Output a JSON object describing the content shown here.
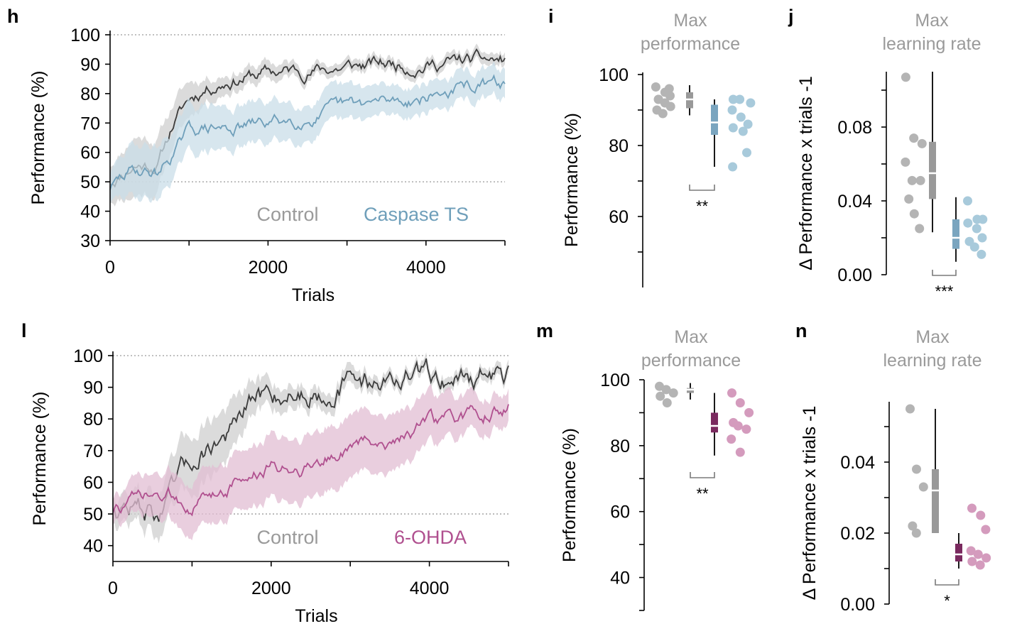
{
  "colors": {
    "control": "#3c3c3c",
    "control_band": "#cfcfcf",
    "control_point": "#b4b4b4",
    "control_box": "#999999",
    "caspase": "#6f9fba",
    "caspase_band": "#c9dde8",
    "caspase_point": "#a8cadb",
    "caspase_box": "#7aa5bf",
    "ohda": "#b0508f",
    "ohda_band": "#e2bdd3",
    "ohda_point": "#d49bbd",
    "ohda_box": "#7a2a5f",
    "title_grey": "#9a9a9a",
    "axis": "#000000"
  },
  "chart_data": [
    {
      "panel": "h",
      "type": "line",
      "xlabel": "Trials",
      "ylabel": "Performance (%)",
      "xlim": [
        0,
        5000
      ],
      "ylim": [
        30,
        100
      ],
      "xticks": [
        0,
        2000,
        4000
      ],
      "yticks": [
        30,
        40,
        50,
        60,
        70,
        80,
        90,
        100
      ],
      "reference_lines": [
        50,
        100
      ],
      "series": [
        {
          "name": "Control",
          "x": [
            0,
            300,
            600,
            800,
            1000,
            1200,
            1500,
            2000,
            2500,
            3000,
            3500,
            4000,
            4500,
            5000
          ],
          "y": [
            50,
            56,
            56,
            70,
            78,
            82,
            85,
            87,
            88,
            89,
            90,
            90,
            91,
            91
          ],
          "band": [
            6,
            10,
            9,
            7,
            6,
            4,
            3,
            3,
            2,
            2,
            2,
            2,
            2,
            2
          ]
        },
        {
          "name": "Caspase TS",
          "x": [
            0,
            300,
            600,
            800,
            1000,
            1200,
            1500,
            2000,
            2500,
            3000,
            3500,
            4000,
            4500,
            5000
          ],
          "y": [
            48,
            54,
            53,
            60,
            67,
            68,
            68,
            70,
            72,
            75,
            77,
            79,
            82,
            83
          ],
          "band": [
            5,
            9,
            9,
            8,
            8,
            8,
            7,
            7,
            6,
            6,
            5,
            5,
            5,
            5
          ]
        }
      ]
    },
    {
      "panel": "i",
      "type": "scatter",
      "title": "Max\nperformance",
      "ylabel": "Performance (%)",
      "ylim": [
        40,
        100
      ],
      "yticks": [
        60,
        80,
        100
      ],
      "groups": [
        {
          "name": "Control",
          "points": [
            96.5,
            95,
            94,
            93,
            92,
            91,
            90,
            89,
            96,
            93
          ],
          "box": {
            "min": 88.5,
            "q1": 90.5,
            "median": 93,
            "q3": 95,
            "max": 97
          }
        },
        {
          "name": "Caspase TS",
          "points": [
            93,
            93,
            92,
            90,
            88,
            86,
            85,
            84,
            78,
            74
          ],
          "box": {
            "min": 74,
            "q1": 83,
            "median": 86.5,
            "q3": 91.5,
            "max": 93
          }
        }
      ],
      "significance": "**"
    },
    {
      "panel": "j",
      "type": "scatter",
      "title": "Max\nlearning rate",
      "ylabel": "Δ Performance x trials -1",
      "ylim": [
        0,
        0.11
      ],
      "yticks": [
        0.0,
        0.04,
        0.08
      ],
      "ytick_labels": [
        "0.00",
        "0.04",
        "0.08"
      ],
      "groups": [
        {
          "name": "Control",
          "points": [
            0.107,
            0.074,
            0.071,
            0.061,
            0.051,
            0.051,
            0.041,
            0.033,
            0.025
          ],
          "box": {
            "min": 0.023,
            "q1": 0.041,
            "median": 0.055,
            "q3": 0.072,
            "max": 0.11
          }
        },
        {
          "name": "Caspase TS",
          "points": [
            0.04,
            0.03,
            0.03,
            0.028,
            0.025,
            0.02,
            0.018,
            0.015,
            0.011
          ],
          "box": {
            "min": 0.007,
            "q1": 0.014,
            "median": 0.02,
            "q3": 0.03,
            "max": 0.042
          }
        }
      ],
      "significance": "***"
    },
    {
      "panel": "l",
      "type": "line",
      "xlabel": "Trials",
      "ylabel": "Performance (%)",
      "xlim": [
        0,
        5000
      ],
      "ylim": [
        35,
        100
      ],
      "xticks": [
        0,
        2000,
        4000
      ],
      "yticks": [
        40,
        50,
        60,
        70,
        80,
        90,
        100
      ],
      "reference_lines": [
        50,
        100
      ],
      "series": [
        {
          "name": "Control",
          "x": [
            0,
            300,
            600,
            800,
            1000,
            1200,
            1500,
            1800,
            2000,
            2500,
            3000,
            3500,
            4000,
            4500,
            5000
          ],
          "y": [
            52,
            52,
            50,
            58,
            66,
            72,
            76,
            85,
            88,
            89,
            92,
            93,
            93,
            94,
            94
          ],
          "band": [
            4,
            5,
            7,
            8,
            9,
            9,
            8,
            5,
            4,
            3,
            3,
            2,
            2,
            2,
            2
          ]
        },
        {
          "name": "6-OHDA",
          "x": [
            0,
            300,
            600,
            800,
            1000,
            1200,
            1500,
            2000,
            2500,
            3000,
            3500,
            4000,
            4500,
            5000
          ],
          "y": [
            51,
            54,
            55,
            55,
            54,
            55,
            60,
            64,
            66,
            71,
            74,
            78,
            80,
            84
          ],
          "band": [
            4,
            6,
            7,
            8,
            8,
            9,
            9,
            10,
            10,
            10,
            9,
            8,
            6,
            5
          ]
        }
      ]
    },
    {
      "panel": "m",
      "type": "scatter",
      "title": "Max\nperformance",
      "ylabel": "Performance (%)",
      "ylim": [
        30,
        100
      ],
      "yticks": [
        40,
        60,
        80,
        100
      ],
      "groups": [
        {
          "name": "Control",
          "points": [
            98,
            97,
            96,
            95,
            93
          ],
          "box": {
            "min": 94,
            "q1": 96,
            "median": 97,
            "q3": 97.5,
            "max": 99
          }
        },
        {
          "name": "6-OHDA",
          "points": [
            96,
            93,
            90,
            87,
            86,
            85,
            82,
            78
          ],
          "box": {
            "min": 77,
            "q1": 84,
            "median": 86,
            "q3": 90,
            "max": 96
          }
        }
      ],
      "significance": "**"
    },
    {
      "panel": "n",
      "type": "scatter",
      "title": "Max\nlearning rate",
      "ylabel": "Δ Performance x trials -1",
      "ylim": [
        0,
        0.057
      ],
      "yticks": [
        0.0,
        0.02,
        0.04
      ],
      "ytick_labels": [
        "0.00",
        "0.02",
        "0.04"
      ],
      "groups": [
        {
          "name": "Control",
          "points": [
            0.055,
            0.038,
            0.033,
            0.022,
            0.02
          ],
          "box": {
            "min": 0.02,
            "q1": 0.02,
            "median": 0.032,
            "q3": 0.038,
            "max": 0.055
          }
        },
        {
          "name": "6-OHDA",
          "points": [
            0.027,
            0.025,
            0.021,
            0.015,
            0.014,
            0.013,
            0.012,
            0.011
          ],
          "box": {
            "min": 0.01,
            "q1": 0.012,
            "median": 0.014,
            "q3": 0.017,
            "max": 0.02
          }
        }
      ],
      "significance": "*"
    }
  ]
}
